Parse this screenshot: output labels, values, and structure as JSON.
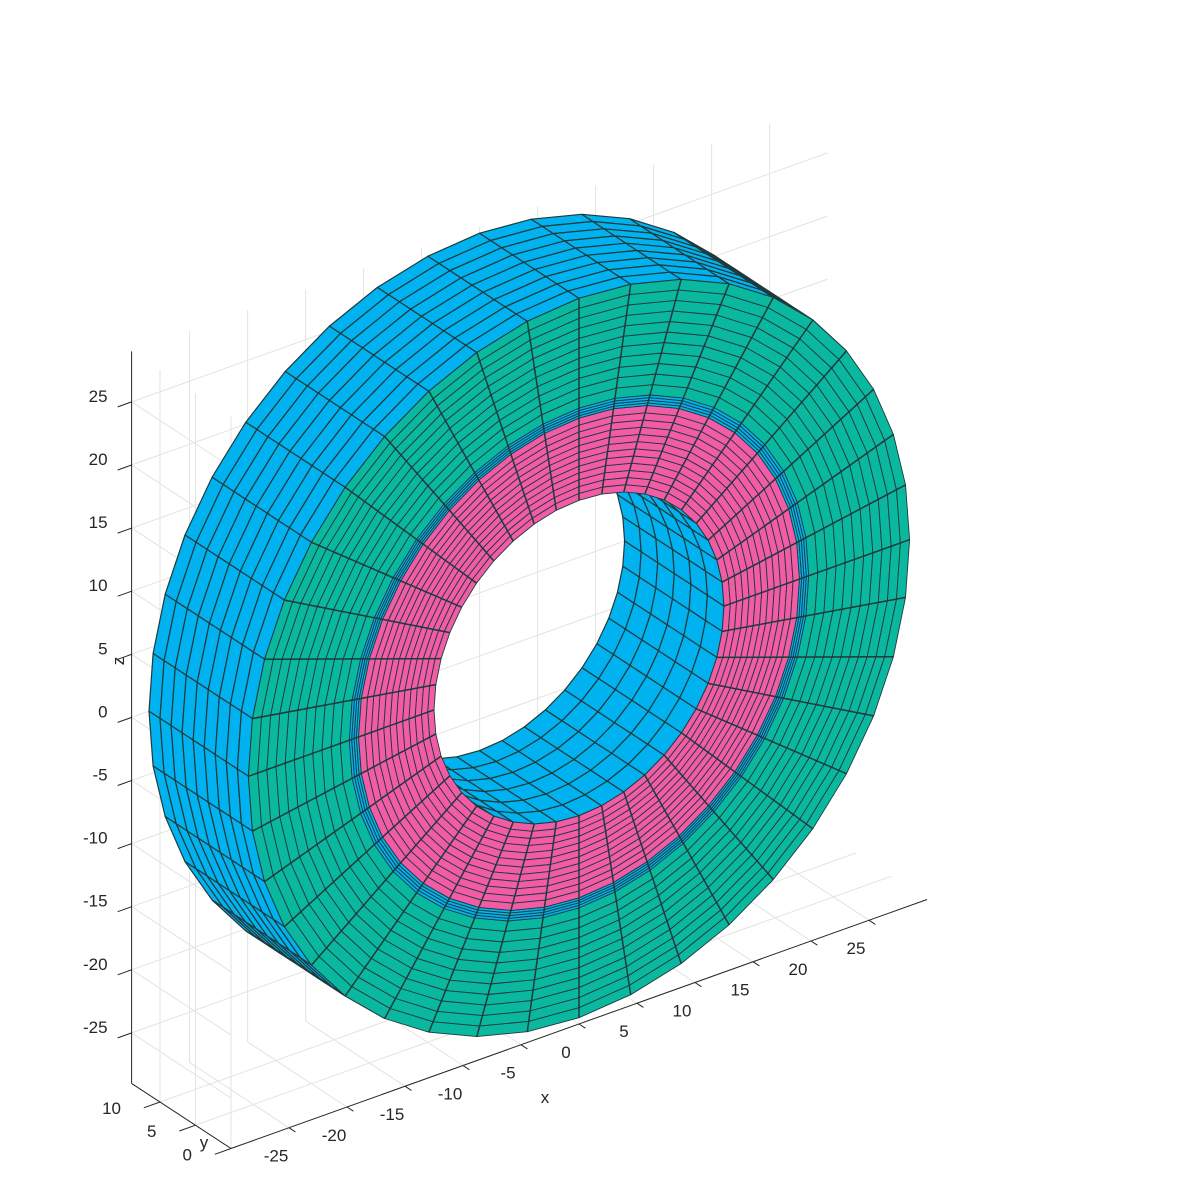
{
  "chart_data": {
    "type": "surface3d",
    "title": "",
    "xlabel": "x",
    "ylabel": "y",
    "zlabel": "z",
    "xlim": [
      -30,
      30
    ],
    "ylim": [
      0,
      14
    ],
    "zlim": [
      -29,
      29
    ],
    "x_ticks": [
      -25,
      -20,
      -15,
      -10,
      -5,
      0,
      5,
      10,
      15,
      20,
      25
    ],
    "y_ticks": [
      0,
      5,
      10
    ],
    "z_ticks": [
      -25,
      -20,
      -15,
      -10,
      -5,
      0,
      5,
      10,
      15,
      20,
      25
    ],
    "grid": true,
    "edge_color": "#1f3a3a",
    "solids": [
      {
        "name": "outer-ring",
        "r_inner": 19,
        "r_outer": 28.5,
        "y_range": [
          0,
          14
        ],
        "sides": 40,
        "face_color": "#00b2f0",
        "front_color": "#0ab8a0",
        "radial_divisions": 3,
        "depth_divisions": 9
      },
      {
        "name": "inner-ring",
        "r_inner": 12.5,
        "r_outer": 19,
        "y_range": [
          0,
          14
        ],
        "sides": 40,
        "face_color": "#00b2f0",
        "front_color": "#f25ca6",
        "radial_divisions": 3,
        "depth_divisions": 6
      }
    ]
  }
}
